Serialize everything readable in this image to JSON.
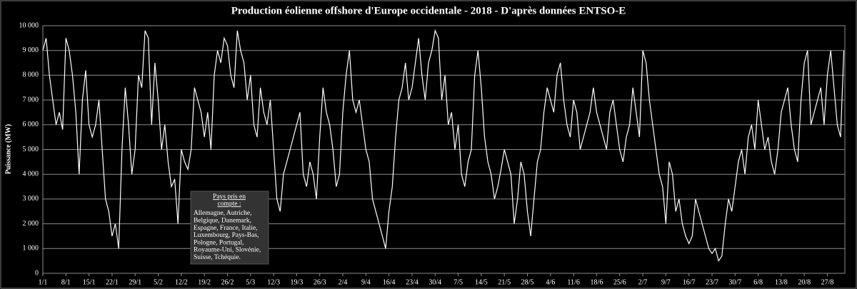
{
  "chart_data": {
    "type": "line",
    "title": "Production éolienne offshore d'Europe occidentale - 2018 - D'après données ENTSO-E",
    "y_label": "Puissance (MW)",
    "ylim": [
      0,
      10000
    ],
    "yticks": [
      0,
      {
        "value": 1000,
        "label": "1 000"
      },
      {
        "value": 2000,
        "label": "2 000"
      },
      {
        "value": 3000,
        "label": "3 000"
      },
      {
        "value": 4000,
        "label": "4 000"
      },
      {
        "value": 5000,
        "label": "5 000"
      },
      {
        "value": 6000,
        "label": "6 000"
      },
      {
        "value": 7000,
        "label": "7 000"
      },
      {
        "value": 8000,
        "label": "8 000"
      },
      {
        "value": 9000,
        "label": "9 000"
      },
      {
        "value": 10000,
        "label": "10 000"
      }
    ],
    "grid": true,
    "categories": [
      "1/1",
      null,
      null,
      null,
      null,
      null,
      null,
      "8/1",
      null,
      null,
      null,
      null,
      null,
      null,
      "15/1",
      null,
      null,
      null,
      null,
      null,
      null,
      "22/1",
      null,
      null,
      null,
      null,
      null,
      null,
      "29/1",
      null,
      null,
      null,
      null,
      null,
      null,
      "5/2",
      null,
      null,
      null,
      null,
      null,
      null,
      "12/2",
      null,
      null,
      null,
      null,
      null,
      null,
      "19/2",
      null,
      null,
      null,
      null,
      null,
      null,
      "26/2",
      null,
      null,
      null,
      null,
      null,
      null,
      "5/3",
      null,
      null,
      null,
      null,
      null,
      null,
      "12/3",
      null,
      null,
      null,
      null,
      null,
      null,
      "19/3",
      null,
      null,
      null,
      null,
      null,
      null,
      "26/3",
      null,
      null,
      null,
      null,
      null,
      null,
      "2/4",
      null,
      null,
      null,
      null,
      null,
      null,
      "9/4",
      null,
      null,
      null,
      null,
      null,
      null,
      "16/4",
      null,
      null,
      null,
      null,
      null,
      null,
      "23/4",
      null,
      null,
      null,
      null,
      null,
      null,
      "30/4",
      null,
      null,
      null,
      null,
      null,
      null,
      "7/5",
      null,
      null,
      null,
      null,
      null,
      null,
      "14/5",
      null,
      null,
      null,
      null,
      null,
      null,
      "21/5",
      null,
      null,
      null,
      null,
      null,
      null,
      "28/5",
      null,
      null,
      null,
      null,
      null,
      null,
      "4/6",
      null,
      null,
      null,
      null,
      null,
      null,
      "11/6",
      null,
      null,
      null,
      null,
      null,
      null,
      "18/6",
      null,
      null,
      null,
      null,
      null,
      null,
      "25/6",
      null,
      null,
      null,
      null,
      null,
      null,
      "2/7",
      null,
      null,
      null,
      null,
      null,
      null,
      "9/7",
      null,
      null,
      null,
      null,
      null,
      null,
      "16/7",
      null,
      null,
      null,
      null,
      null,
      null,
      "23/7",
      null,
      null,
      null,
      null,
      null,
      null,
      "30/7",
      null,
      null,
      null,
      null,
      null,
      null,
      "6/8",
      null,
      null,
      null,
      null,
      null,
      null,
      "13/8",
      null,
      null,
      null,
      null,
      null,
      null,
      "20/8",
      null,
      null,
      null,
      null,
      null,
      null,
      "27/8",
      null,
      null,
      null,
      null,
      null
    ],
    "series": [
      {
        "name": "Production",
        "color": "#ffffff",
        "values": [
          9000,
          9500,
          8000,
          7000,
          6000,
          6500,
          5800,
          9500,
          9000,
          8000,
          6500,
          4000,
          7000,
          8200,
          6000,
          5500,
          6000,
          7000,
          5000,
          3000,
          2500,
          1500,
          2000,
          1000,
          5000,
          7500,
          6000,
          4000,
          5000,
          8000,
          7500,
          9800,
          9500,
          6000,
          8500,
          7000,
          5000,
          6000,
          4500,
          3500,
          3800,
          2000,
          5000,
          4500,
          4200,
          5000,
          7500,
          7000,
          6500,
          5500,
          6500,
          5000,
          8000,
          9000,
          8500,
          9500,
          9200,
          8000,
          7500,
          9800,
          9000,
          8500,
          7000,
          8000,
          6000,
          5500,
          7500,
          6500,
          6000,
          7000,
          5000,
          3000,
          2500,
          4000,
          4500,
          5000,
          5500,
          6000,
          6500,
          4000,
          3500,
          4500,
          4000,
          3000,
          5500,
          7500,
          6500,
          6000,
          5000,
          3500,
          4000,
          6500,
          8000,
          9000,
          7000,
          6500,
          7000,
          6000,
          5000,
          4500,
          3000,
          2500,
          2000,
          1500,
          1000,
          2500,
          3500,
          5500,
          7000,
          7500,
          8500,
          7000,
          7500,
          8500,
          9500,
          8000,
          7000,
          8500,
          9000,
          9800,
          9500,
          7000,
          8000,
          6000,
          6500,
          5000,
          6000,
          4000,
          3500,
          4500,
          5000,
          8000,
          9000,
          7500,
          5500,
          4500,
          4000,
          3000,
          3500,
          4200,
          5000,
          4500,
          4000,
          2000,
          3000,
          4500,
          4000,
          2500,
          1500,
          3000,
          4500,
          5000,
          6500,
          7500,
          7000,
          6500,
          8000,
          8500,
          7000,
          6000,
          5500,
          7000,
          6500,
          5000,
          5500,
          6000,
          6500,
          7500,
          6500,
          6000,
          5500,
          5000,
          6500,
          7000,
          6000,
          5000,
          4500,
          5500,
          6000,
          7500,
          6500,
          5500,
          9000,
          8500,
          7000,
          6000,
          5000,
          4000,
          3500,
          2000,
          4500,
          4000,
          2500,
          3000,
          2000,
          1500,
          1200,
          1500,
          3000,
          2500,
          2000,
          1500,
          1000,
          800,
          1000,
          500,
          700,
          2000,
          3000,
          2500,
          3500,
          4500,
          5000,
          4000,
          5500,
          6000,
          5000,
          7000,
          6000,
          5000,
          5500,
          4500,
          4000,
          5000,
          6500,
          7000,
          7500,
          6000,
          5000,
          4500,
          7000,
          8500,
          9000,
          6000,
          6500,
          7000,
          7500,
          6000,
          8000,
          9000,
          7500,
          6000,
          5500,
          9000
        ]
      }
    ],
    "annotation": {
      "title": [
        "Pays  pris en",
        "compte :"
      ],
      "lines": [
        "Allemagne, Autriche,",
        "Belgique, Danemark,",
        "Espagne, France, Italie,",
        "Luxembourg, Pays-Bas,",
        "Pologne, Portugal,",
        "Royaume-Uni, Slovénie,",
        "Suisse, Tchéquie."
      ]
    }
  }
}
